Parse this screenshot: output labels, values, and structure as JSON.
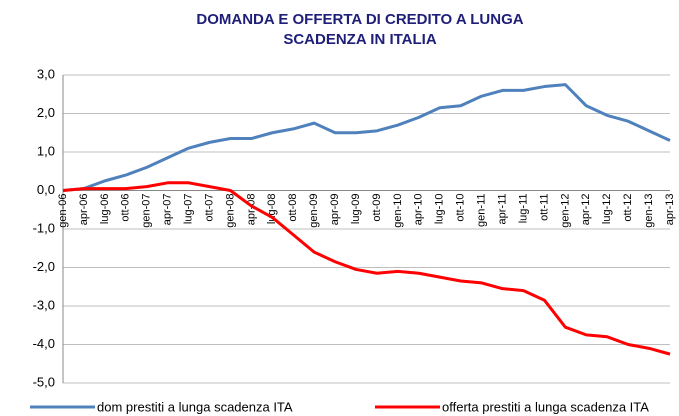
{
  "chart_data": {
    "type": "line",
    "title": [
      "DOMANDA E OFFERTA DI CREDITO A LUNGA",
      "SCADENZA IN ITALIA"
    ],
    "categories": [
      "gen-06",
      "apr-06",
      "lug-06",
      "ott-06",
      "gen-07",
      "apr-07",
      "lug-07",
      "ott-07",
      "gen-08",
      "apr-08",
      "lug-08",
      "ott-08",
      "gen-09",
      "apr-09",
      "lug-09",
      "ott-09",
      "gen-10",
      "apr-10",
      "lug-10",
      "ott-10",
      "gen-11",
      "apr-11",
      "lug-11",
      "ott-11",
      "gen-12",
      "apr-12",
      "lug-12",
      "ott-12",
      "gen-13",
      "apr-13"
    ],
    "series": [
      {
        "name": "dom prestiti a lunga scadenza ITA",
        "color": "#4f81bd",
        "values": [
          0,
          0.05,
          0.25,
          0.4,
          0.6,
          0.85,
          1.1,
          1.25,
          1.35,
          1.35,
          1.5,
          1.6,
          1.75,
          1.5,
          1.5,
          1.55,
          1.7,
          1.9,
          2.15,
          2.2,
          2.45,
          2.6,
          2.6,
          2.7,
          2.75,
          2.2,
          1.95,
          1.8,
          1.55,
          1.3
        ]
      },
      {
        "name": "offerta prestiti a lunga scadenza ITA",
        "color": "#ff0000",
        "values": [
          0,
          0.05,
          0.05,
          0.05,
          0.1,
          0.2,
          0.2,
          0.1,
          0.0,
          -0.4,
          -0.7,
          -1.15,
          -1.6,
          -1.85,
          -2.05,
          -2.15,
          -2.1,
          -2.15,
          -2.25,
          -2.35,
          -2.4,
          -2.55,
          -2.6,
          -2.85,
          -3.55,
          -3.75,
          -3.8,
          -4.0,
          -4.1,
          -4.25
        ]
      }
    ],
    "ylim": [
      -5,
      3
    ],
    "yticks": [
      {
        "value": -5,
        "label": "-5,0"
      },
      {
        "value": -4,
        "label": "-4,0"
      },
      {
        "value": -3,
        "label": "-3,0"
      },
      {
        "value": -2,
        "label": "-2,0"
      },
      {
        "value": -1,
        "label": "-1,0"
      },
      {
        "value": 0,
        "label": "0,0"
      },
      {
        "value": 1,
        "label": "1,0"
      },
      {
        "value": 2,
        "label": "2,0"
      },
      {
        "value": 3,
        "label": "3,0"
      }
    ],
    "grid": true,
    "legend": "bottom"
  }
}
